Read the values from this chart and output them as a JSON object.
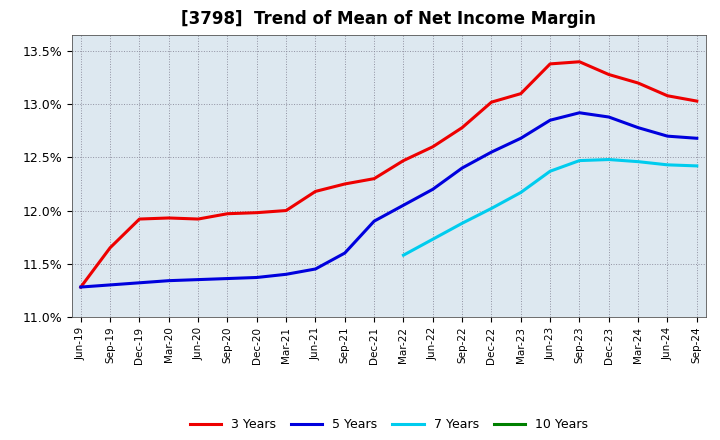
{
  "title": "[3798]  Trend of Mean of Net Income Margin",
  "x_labels": [
    "Jun-19",
    "Sep-19",
    "Dec-19",
    "Mar-20",
    "Jun-20",
    "Sep-20",
    "Dec-20",
    "Mar-21",
    "Jun-21",
    "Sep-21",
    "Dec-21",
    "Mar-22",
    "Jun-22",
    "Sep-22",
    "Dec-22",
    "Mar-23",
    "Jun-23",
    "Sep-23",
    "Dec-23",
    "Mar-24",
    "Jun-24",
    "Sep-24"
  ],
  "series": {
    "3 Years": {
      "color": "#ee0000",
      "data": [
        11.28,
        11.65,
        11.92,
        11.93,
        11.92,
        11.97,
        11.98,
        12.0,
        12.18,
        12.25,
        12.3,
        12.47,
        12.6,
        12.78,
        13.02,
        13.1,
        13.38,
        13.4,
        13.28,
        13.2,
        13.08,
        13.03
      ]
    },
    "5 Years": {
      "color": "#0000dd",
      "data": [
        11.28,
        11.3,
        11.32,
        11.34,
        11.35,
        11.36,
        11.37,
        11.4,
        11.45,
        11.6,
        11.9,
        12.05,
        12.2,
        12.4,
        12.55,
        12.68,
        12.85,
        12.92,
        12.88,
        12.78,
        12.7,
        12.68
      ]
    },
    "7 Years": {
      "color": "#00ccee",
      "data": [
        null,
        null,
        null,
        null,
        null,
        null,
        null,
        null,
        null,
        null,
        null,
        11.58,
        11.73,
        11.88,
        12.02,
        12.17,
        12.37,
        12.47,
        12.48,
        12.46,
        12.43,
        12.42
      ]
    },
    "10 Years": {
      "color": "#008000",
      "data": [
        null,
        null,
        null,
        null,
        null,
        null,
        null,
        null,
        null,
        null,
        null,
        null,
        null,
        null,
        null,
        null,
        null,
        null,
        null,
        null,
        null,
        null
      ]
    }
  },
  "ylim": [
    11.0,
    13.65
  ],
  "yticks": [
    11.0,
    11.5,
    12.0,
    12.5,
    13.0,
    13.5
  ],
  "ytick_labels": [
    "11.0%",
    "11.5%",
    "12.0%",
    "12.5%",
    "13.0%",
    "13.5%"
  ],
  "legend_labels": [
    "3 Years",
    "5 Years",
    "7 Years",
    "10 Years"
  ],
  "legend_colors": [
    "#ee0000",
    "#0000dd",
    "#00ccee",
    "#008000"
  ],
  "background_color": "#ffffff",
  "plot_bg_color": "#dde8f0",
  "grid_color": "#aaaaaa",
  "title_fontsize": 12
}
